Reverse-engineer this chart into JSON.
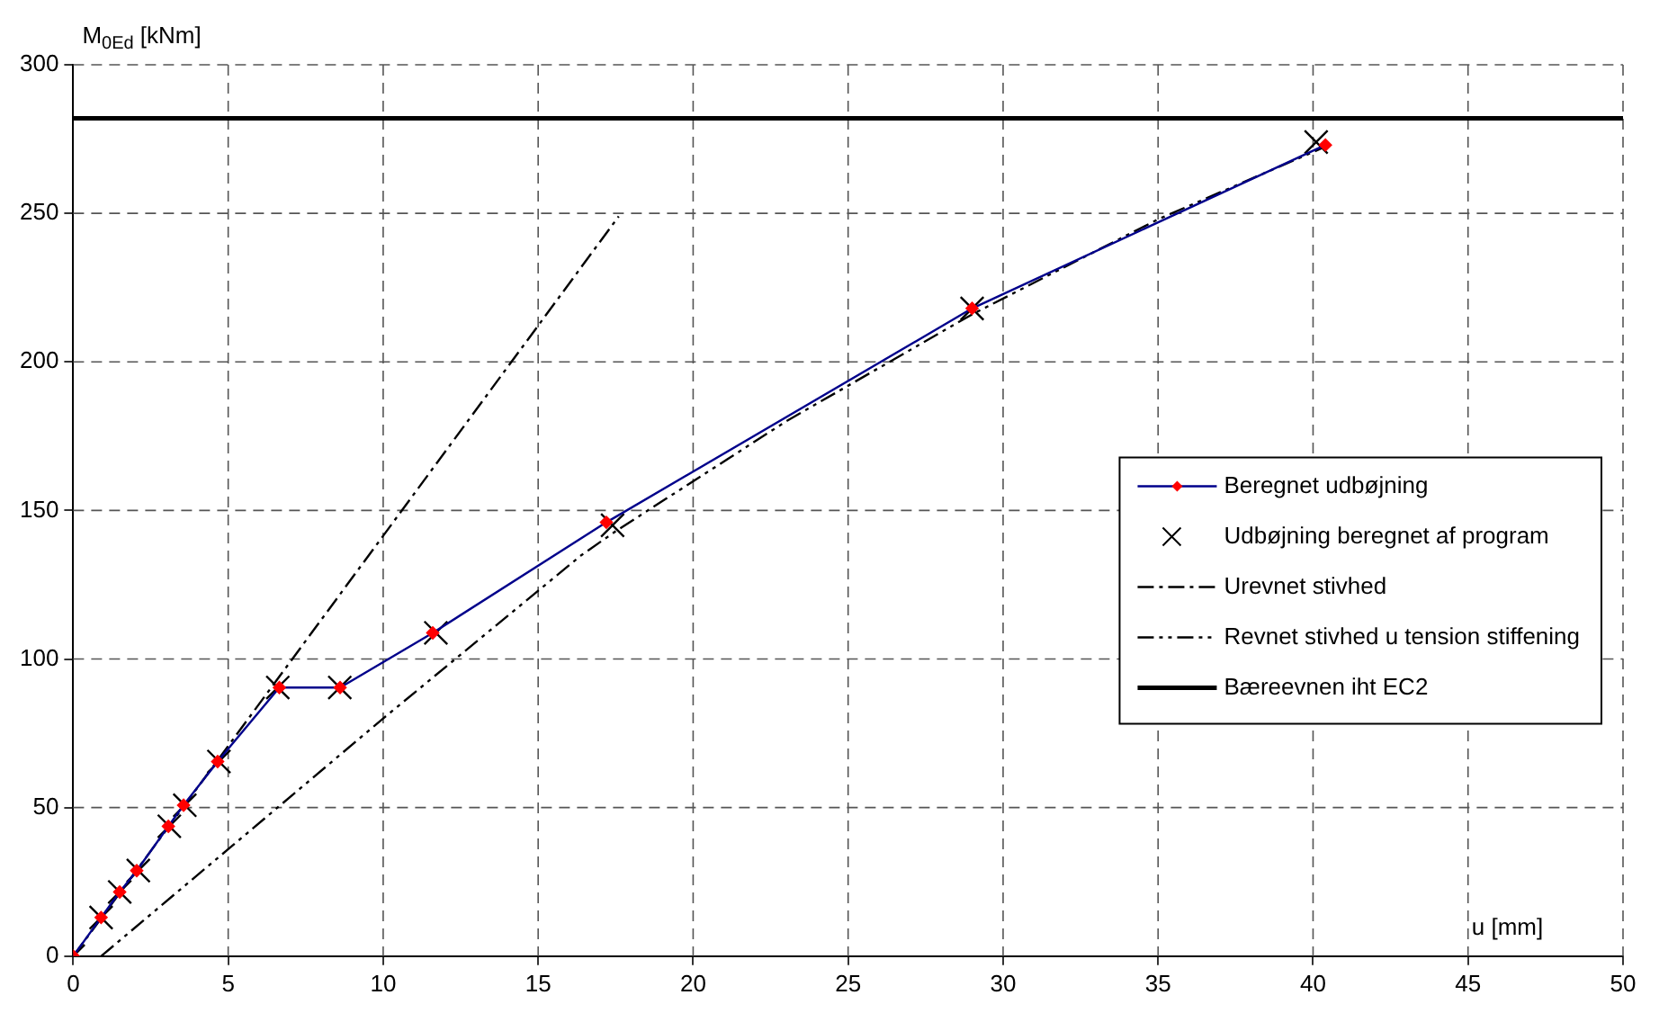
{
  "chart_data": {
    "type": "line",
    "xlabel": "u [mm]",
    "ylabel": "M$_{0Ed}$ [kNm]",
    "xlim": [
      0,
      50
    ],
    "xticks": [
      0,
      5,
      10,
      15,
      20,
      25,
      30,
      35,
      40,
      45,
      50
    ],
    "ylim": [
      0,
      300
    ],
    "yticks": [
      0,
      50,
      100,
      150,
      200,
      250,
      300
    ],
    "grid": true,
    "legend": "right",
    "series": [
      {
        "name": "Beregnet udbøjning",
        "color": "#00008b",
        "marker": "diamond",
        "colors": [
          "#ff0000",
          "#ff0000",
          "#ff0000",
          "#ff0000",
          "#ff0000",
          "#ff0000",
          "#ff0000",
          "#ff0000",
          "#ff0000",
          "#ff0000",
          "#ff0000",
          "#ff0000",
          "#ff0000"
        ],
        "line_style": "solid",
        "x": [
          0,
          0.9,
          1.5,
          2.05,
          3.07,
          3.56,
          4.66,
          6.65,
          8.61,
          11.6,
          17.2,
          29.0,
          40.4
        ],
        "values": [
          0,
          13,
          21.6,
          28.8,
          43.7,
          50.8,
          65.5,
          90.4,
          90.4,
          108.8,
          146,
          218,
          273
        ]
      },
      {
        "name": "Udbøjning beregnet af program",
        "type": "scatter",
        "color": "#000000",
        "marker": "cross",
        "x": [
          0,
          0.9,
          1.5,
          2.1,
          3.1,
          3.6,
          4.7,
          6.6,
          8.6,
          11.7,
          17.4,
          29.0,
          40.1
        ],
        "values": [
          0,
          13,
          21.6,
          28.8,
          43.7,
          50.8,
          65.5,
          90.4,
          90.4,
          108.8,
          145,
          218,
          274
        ]
      },
      {
        "name": "Urevnet stivhed",
        "color": "#000000",
        "marker": "none",
        "line_style": "dashed",
        "x": [
          0,
          17.6
        ],
        "values": [
          0,
          249
        ]
      },
      {
        "name": "Revnet stivhed u tension stiffening",
        "color": "#000000",
        "marker": "none",
        "line_style": "dotted",
        "x": [
          0.9,
          5,
          10,
          16.4,
          17.5,
          23,
          29,
          35,
          40.3
        ],
        "values": [
          0,
          36,
          80,
          135,
          143,
          180,
          216,
          248,
          272
        ]
      }
    ],
    "ref_lines": [
      {
        "axis": "y",
        "value": 282,
        "label": "Bæreevnen iht EC2",
        "color": "#000000"
      }
    ]
  }
}
